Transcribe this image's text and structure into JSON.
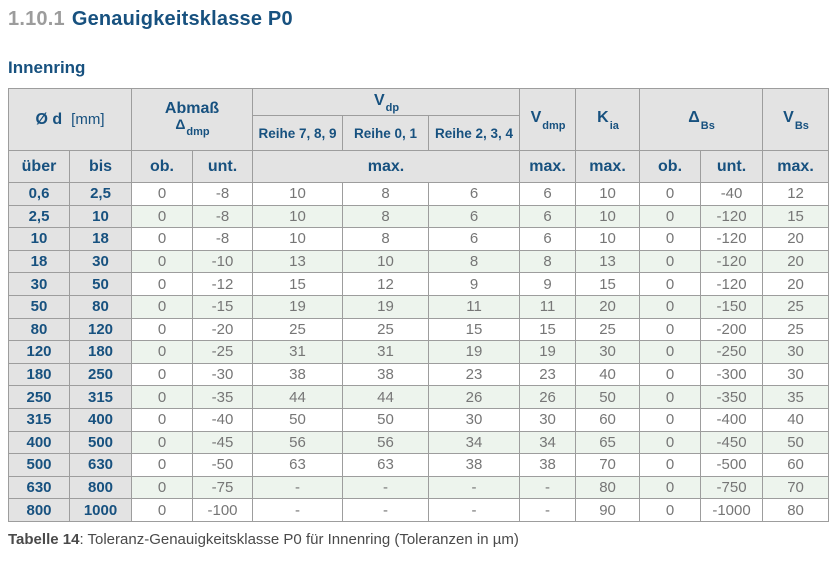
{
  "page": {
    "section_number": "1.10.1",
    "section_title": "Genauigkeitsklasse P0",
    "subtitle": "Innenring"
  },
  "table": {
    "header": {
      "od": {
        "main": "Ø d",
        "unit": "[mm]"
      },
      "abmass": {
        "line1": "Abmaß",
        "sym": "Δ",
        "sub": "dmp"
      },
      "vdp": {
        "sym": "V",
        "sub": "dp",
        "reihe789": "Reihe 7, 8, 9",
        "reihe01": "Reihe 0, 1",
        "reihe234": "Reihe 2, 3, 4"
      },
      "vdmp": {
        "sym": "V",
        "sub": "dmp"
      },
      "kia": {
        "sym": "K",
        "sub": "ia"
      },
      "dbs": {
        "sym": "Δ",
        "sub": "Bs"
      },
      "vbs": {
        "sym": "V",
        "sub": "Bs"
      },
      "sub_labels": {
        "ueber": "über",
        "bis": "bis",
        "ob": "ob.",
        "unt": "unt.",
        "max": "max."
      }
    },
    "rows": [
      [
        "0,6",
        "2,5",
        "0",
        "-8",
        "10",
        "8",
        "6",
        "6",
        "10",
        "0",
        "-40",
        "12"
      ],
      [
        "2,5",
        "10",
        "0",
        "-8",
        "10",
        "8",
        "6",
        "6",
        "10",
        "0",
        "-120",
        "15"
      ],
      [
        "10",
        "18",
        "0",
        "-8",
        "10",
        "8",
        "6",
        "6",
        "10",
        "0",
        "-120",
        "20"
      ],
      [
        "18",
        "30",
        "0",
        "-10",
        "13",
        "10",
        "8",
        "8",
        "13",
        "0",
        "-120",
        "20"
      ],
      [
        "30",
        "50",
        "0",
        "-12",
        "15",
        "12",
        "9",
        "9",
        "15",
        "0",
        "-120",
        "20"
      ],
      [
        "50",
        "80",
        "0",
        "-15",
        "19",
        "19",
        "11",
        "11",
        "20",
        "0",
        "-150",
        "25"
      ],
      [
        "80",
        "120",
        "0",
        "-20",
        "25",
        "25",
        "15",
        "15",
        "25",
        "0",
        "-200",
        "25"
      ],
      [
        "120",
        "180",
        "0",
        "-25",
        "31",
        "31",
        "19",
        "19",
        "30",
        "0",
        "-250",
        "30"
      ],
      [
        "180",
        "250",
        "0",
        "-30",
        "38",
        "38",
        "23",
        "23",
        "40",
        "0",
        "-300",
        "30"
      ],
      [
        "250",
        "315",
        "0",
        "-35",
        "44",
        "44",
        "26",
        "26",
        "50",
        "0",
        "-350",
        "35"
      ],
      [
        "315",
        "400",
        "0",
        "-40",
        "50",
        "50",
        "30",
        "30",
        "60",
        "0",
        "-400",
        "40"
      ],
      [
        "400",
        "500",
        "0",
        "-45",
        "56",
        "56",
        "34",
        "34",
        "65",
        "0",
        "-450",
        "50"
      ],
      [
        "500",
        "630",
        "0",
        "-50",
        "63",
        "63",
        "38",
        "38",
        "70",
        "0",
        "-500",
        "60"
      ],
      [
        "630",
        "800",
        "0",
        "-75",
        "-",
        "-",
        "-",
        "-",
        "80",
        "0",
        "-750",
        "70"
      ],
      [
        "800",
        "1000",
        "0",
        "-100",
        "-",
        "-",
        "-",
        "-",
        "90",
        "0",
        "-1000",
        "80"
      ]
    ],
    "caption": {
      "bold": "Tabelle 14",
      "rest": ": Toleranz-Genauigkeitsklasse P0 für Innenring (Toleranzen in µm)"
    }
  },
  "colors": {
    "heading_blue": "#17517f",
    "section_number_gray": "#9c9c9c",
    "header_bg": "#e3e3e3",
    "row_green": "#edf4ed",
    "data_text": "#767676",
    "border": "#9d9d9d",
    "caption_text": "#4a4a4a"
  }
}
